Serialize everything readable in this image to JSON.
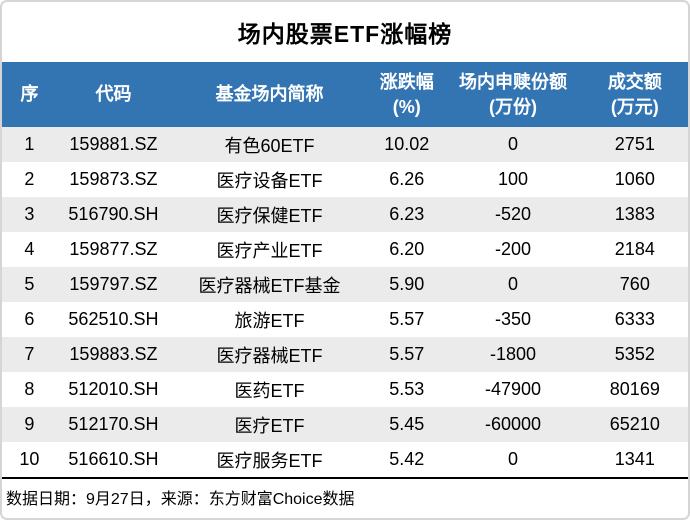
{
  "title": "场内股票ETF涨幅榜",
  "chart_data": {
    "type": "table",
    "title": "场内股票ETF涨幅榜",
    "columns": [
      {
        "label": "序",
        "unit": ""
      },
      {
        "label": "代码",
        "unit": ""
      },
      {
        "label": "基金场内简称",
        "unit": ""
      },
      {
        "label": "涨跌幅",
        "unit": "(%)"
      },
      {
        "label": "场内申赎份额",
        "unit": "(万份)"
      },
      {
        "label": "成交额",
        "unit": "(万元)"
      }
    ],
    "rows": [
      [
        "1",
        "159881.SZ",
        "有色60ETF",
        "10.02",
        "0",
        "2751"
      ],
      [
        "2",
        "159873.SZ",
        "医疗设备ETF",
        "6.26",
        "100",
        "1060"
      ],
      [
        "3",
        "516790.SH",
        "医疗保健ETF",
        "6.23",
        "-520",
        "1383"
      ],
      [
        "4",
        "159877.SZ",
        "医疗产业ETF",
        "6.20",
        "-200",
        "2184"
      ],
      [
        "5",
        "159797.SZ",
        "医疗器械ETF基金",
        "5.90",
        "0",
        "760"
      ],
      [
        "6",
        "562510.SH",
        "旅游ETF",
        "5.57",
        "-350",
        "6333"
      ],
      [
        "7",
        "159883.SZ",
        "医疗器械ETF",
        "5.57",
        "-1800",
        "5352"
      ],
      [
        "8",
        "512010.SH",
        "医药ETF",
        "5.53",
        "-47900",
        "80169"
      ],
      [
        "9",
        "512170.SH",
        "医疗ETF",
        "5.45",
        "-60000",
        "65210"
      ],
      [
        "10",
        "516610.SH",
        "医疗服务ETF",
        "5.42",
        "0",
        "1341"
      ]
    ],
    "legend_position": "none",
    "grid": false
  },
  "footer": {
    "text": "数据日期：9月27日，来源：东方财富Choice数据"
  },
  "colors": {
    "header_bg": "#3375B2",
    "header_text": "#FFFFFF",
    "stripe": "#EBEBEB",
    "row_bg": "#FFFFFF",
    "text": "#000000",
    "border": "#D5D5D5",
    "line": "#000000"
  }
}
